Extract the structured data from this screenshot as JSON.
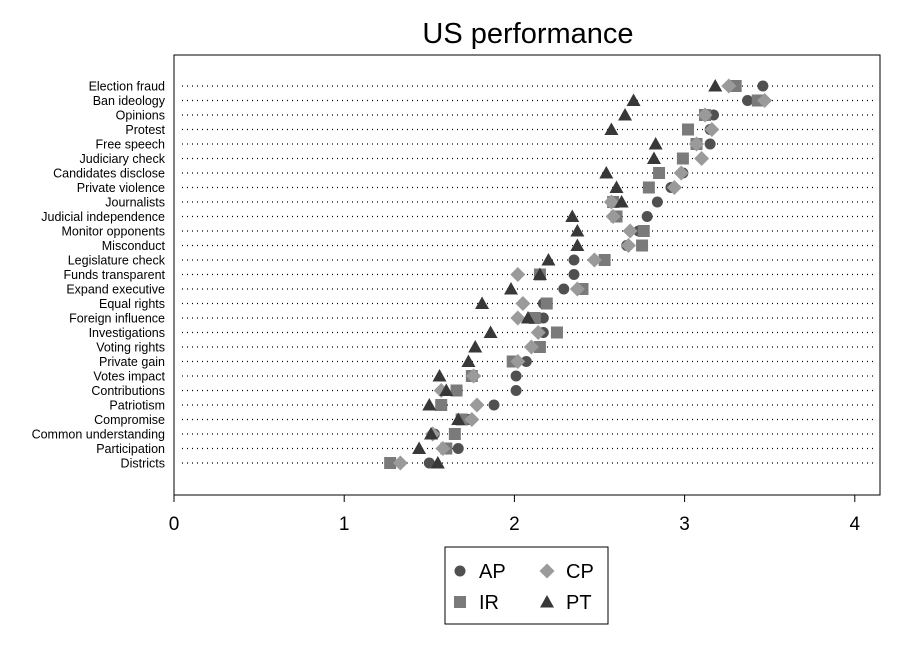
{
  "chart_data": {
    "type": "scatter",
    "title": "US performance",
    "xlabel": "",
    "ylabel": "",
    "xlim": [
      0,
      4.15
    ],
    "xticks": [
      0,
      1,
      2,
      3,
      4
    ],
    "xtick_labels": [
      "0",
      "1",
      "2",
      "3",
      "4"
    ],
    "grid": "dotted horizontal row guides",
    "legend_position": "bottom-center",
    "categories": [
      "Election fraud",
      "Ban ideology",
      "Opinions",
      "Protest",
      "Free speech",
      "Judiciary check",
      "Candidates disclose",
      "Private violence",
      "Journalists",
      "Judicial independence",
      "Monitor opponents",
      "Misconduct",
      "Legislature check",
      "Funds transparent",
      "Expand executive",
      "Equal rights",
      "Foreign influence",
      "Investigations",
      "Voting rights",
      "Private gain",
      "Votes impact",
      "Contributions",
      "Patriotism",
      "Compromise",
      "Common understanding",
      "Participation",
      "Districts"
    ],
    "series": [
      {
        "name": "AP",
        "marker": "circle",
        "color": "#505050",
        "values": [
          3.46,
          3.37,
          3.17,
          3.15,
          3.15,
          2.99,
          2.99,
          2.92,
          2.84,
          2.78,
          2.73,
          2.66,
          2.35,
          2.35,
          2.29,
          2.17,
          2.17,
          2.17,
          2.15,
          2.07,
          2.01,
          2.01,
          1.88,
          1.73,
          1.53,
          1.67,
          1.5
        ]
      },
      {
        "name": "IR",
        "marker": "square",
        "color": "#7a7a7a",
        "values": [
          3.3,
          3.43,
          3.12,
          3.02,
          3.07,
          2.99,
          2.85,
          2.79,
          2.58,
          2.6,
          2.76,
          2.75,
          2.53,
          2.15,
          2.4,
          2.19,
          2.12,
          2.25,
          2.15,
          1.99,
          1.75,
          1.66,
          1.57,
          1.69,
          1.65,
          1.6,
          1.27
        ]
      },
      {
        "name": "CP",
        "marker": "diamond",
        "color": "#9a9a9a",
        "values": [
          3.26,
          3.47,
          3.12,
          3.16,
          3.07,
          3.1,
          2.98,
          2.94,
          2.57,
          2.58,
          2.68,
          2.67,
          2.47,
          2.02,
          2.37,
          2.05,
          2.02,
          2.14,
          2.1,
          2.02,
          1.76,
          1.57,
          1.78,
          1.75,
          1.52,
          1.58,
          1.33
        ]
      },
      {
        "name": "PT",
        "marker": "triangle",
        "color": "#383838",
        "values": [
          3.18,
          2.7,
          2.65,
          2.57,
          2.83,
          2.82,
          2.54,
          2.6,
          2.63,
          2.34,
          2.37,
          2.37,
          2.2,
          2.15,
          1.98,
          1.81,
          2.08,
          1.86,
          1.77,
          1.73,
          1.56,
          1.6,
          1.5,
          1.67,
          1.51,
          1.44,
          1.55
        ]
      }
    ]
  }
}
